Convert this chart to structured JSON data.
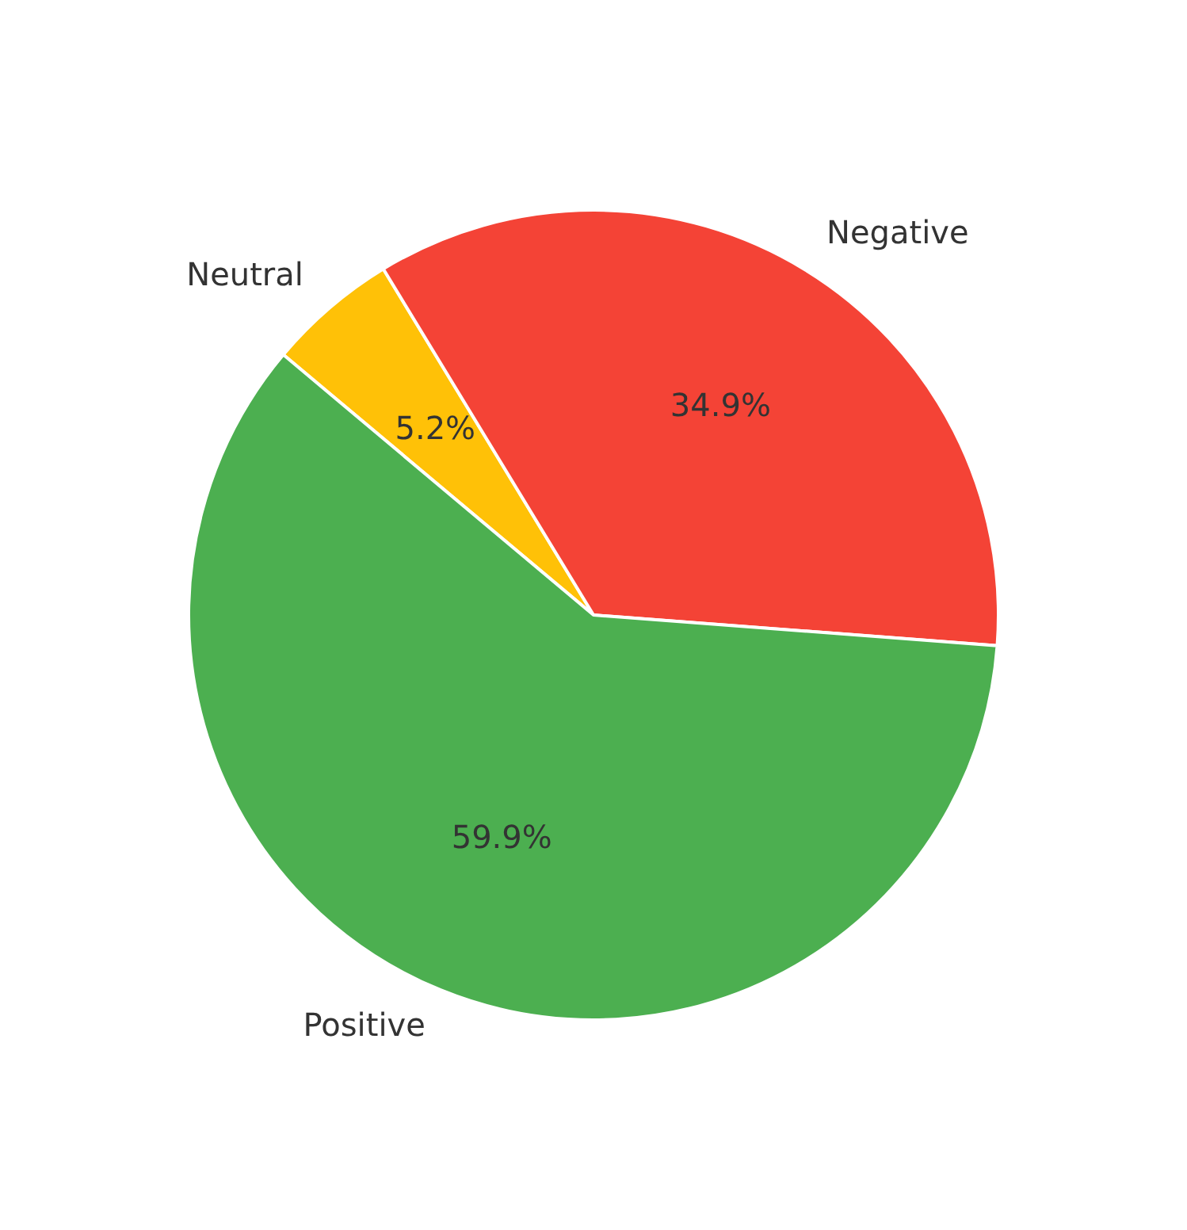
{
  "chart_data": {
    "type": "pie",
    "categories": [
      "Neutral",
      "Negative",
      "Positive"
    ],
    "values": [
      5.2,
      34.9,
      59.9
    ],
    "colors": [
      "#ffc107",
      "#f44336",
      "#4caf50"
    ],
    "value_labels": [
      "5.2%",
      "34.9%",
      "59.9%"
    ],
    "legend": false
  }
}
